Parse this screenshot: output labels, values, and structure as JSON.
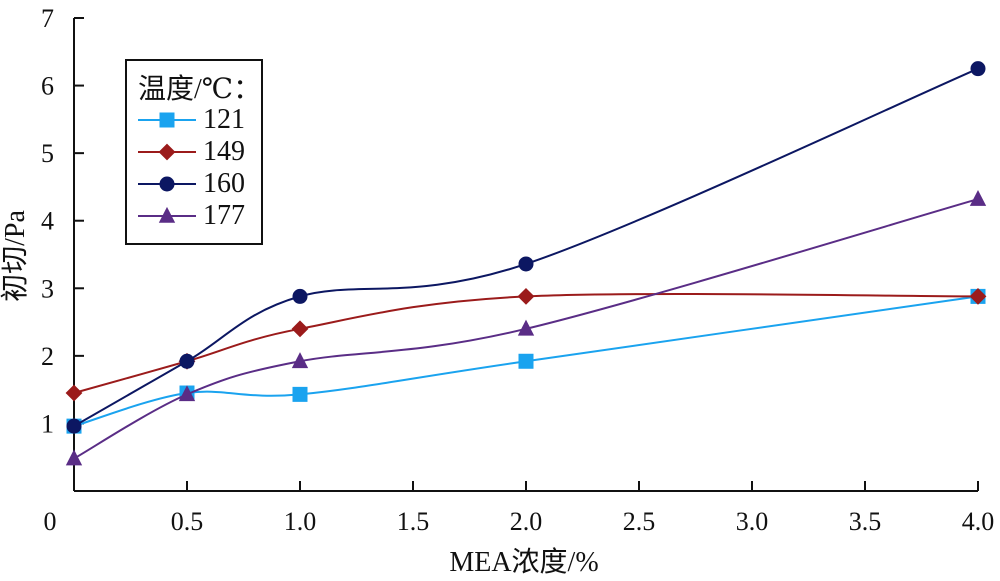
{
  "chart_data": {
    "type": "line",
    "xlabel": "MEA浓度/%",
    "ylabel": "初切/Pa",
    "x": [
      0,
      0.5,
      1.0,
      2.0,
      4.0
    ],
    "x_tick_labels": [
      "0",
      "0.5",
      "1.0",
      "1.5",
      "2.0",
      "2.5",
      "3.0",
      "3.5",
      "4.0"
    ],
    "y_tick_labels": [
      "1",
      "2",
      "3",
      "4",
      "5",
      "6",
      "7"
    ],
    "ylim": [
      0,
      7
    ],
    "legend": {
      "title": "温度/℃：",
      "placement": "top-left"
    },
    "series": [
      {
        "name": "121",
        "values": [
          0.96,
          1.45,
          1.43,
          1.92,
          2.88
        ],
        "marker": "square",
        "color": "#1aa3ef"
      },
      {
        "name": "149",
        "values": [
          1.45,
          1.92,
          2.4,
          2.88,
          2.88
        ],
        "marker": "diamond",
        "color": "#9b1b1b"
      },
      {
        "name": "160",
        "values": [
          0.96,
          1.92,
          2.88,
          3.36,
          6.25
        ],
        "marker": "circle",
        "color": "#0c1762"
      },
      {
        "name": "177",
        "values": [
          0.48,
          1.43,
          1.92,
          2.4,
          4.32
        ],
        "marker": "triangle",
        "color": "#5a2d86"
      }
    ],
    "grid": false
  }
}
